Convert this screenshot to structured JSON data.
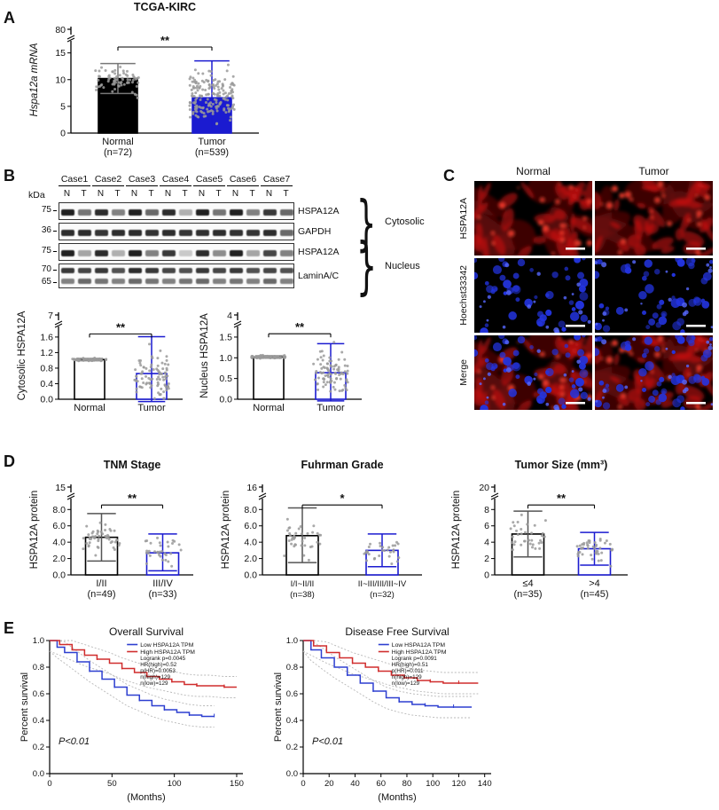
{
  "figure": {
    "background": "#ffffff"
  },
  "panelA": {
    "label": "A"
  },
  "panelB": {
    "label": "B",
    "kda_header": "kDa",
    "cases": [
      "Case1",
      "Case2",
      "Case3",
      "Case4",
      "Case5",
      "Case6",
      "Case7"
    ],
    "lanes": [
      "N",
      "T",
      "N",
      "T",
      "N",
      "T",
      "N",
      "T",
      "N",
      "T",
      "N",
      "T",
      "N",
      "T"
    ],
    "strips": [
      {
        "kda": [
          "75"
        ],
        "name": "HSPA12A",
        "rows": [
          [
            0.9,
            0.55,
            0.85,
            0.5,
            0.9,
            0.6,
            0.85,
            0.3,
            0.9,
            0.55,
            0.9,
            0.5,
            0.8,
            0.6
          ]
        ]
      },
      {
        "kda": [
          "36"
        ],
        "name": "GAPDH",
        "rows": [
          [
            0.85,
            0.85,
            0.82,
            0.85,
            0.85,
            0.83,
            0.85,
            0.82,
            0.84,
            0.85,
            0.83,
            0.82,
            0.85,
            0.6
          ]
        ]
      },
      {
        "kda": [
          "75"
        ],
        "name": "HSPA12A",
        "rows": [
          [
            0.9,
            0.35,
            0.85,
            0.3,
            0.9,
            0.5,
            0.8,
            0.2,
            0.85,
            0.45,
            0.9,
            0.35,
            0.75,
            0.5
          ]
        ]
      },
      {
        "kda": [
          "70",
          "65"
        ],
        "name": "LaminA/C",
        "rows": [
          [
            0.8,
            0.75,
            0.8,
            0.7,
            0.85,
            0.8,
            0.75,
            0.7,
            0.8,
            0.75,
            0.8,
            0.7,
            0.75,
            0.7
          ],
          [
            0.5,
            0.6,
            0.55,
            0.5,
            0.6,
            0.55,
            0.5,
            0.55,
            0.6,
            0.5,
            0.55,
            0.5,
            0.6,
            0.5
          ]
        ]
      }
    ],
    "groups": [
      {
        "label": "Cytosolic"
      },
      {
        "label": "Nucleus"
      }
    ]
  },
  "panelC": {
    "label": "C",
    "col_headers": [
      "Normal",
      "Tumor"
    ],
    "row_labels": [
      "HSPA12A",
      "Hoechst33342",
      "Merge"
    ],
    "cells": [
      {
        "row": "HSPA12A",
        "col": "Normal",
        "red": 1,
        "blue": 0,
        "scalebar": true
      },
      {
        "row": "HSPA12A",
        "col": "Tumor",
        "red": 2,
        "blue": 0,
        "scalebar": true
      },
      {
        "row": "Hoechst33342",
        "col": "Normal",
        "red": 0,
        "blue": 3,
        "scalebar": true
      },
      {
        "row": "Hoechst33342",
        "col": "Tumor",
        "red": 0,
        "blue": 4,
        "scalebar": true
      },
      {
        "row": "Merge",
        "col": "Normal",
        "red": 1,
        "blue": 3,
        "scalebar": true
      },
      {
        "row": "Merge",
        "col": "Tumor",
        "red": 2,
        "blue": 4,
        "scalebar": true
      }
    ]
  },
  "panelD": {
    "label": "D"
  },
  "panelE": {
    "label": "E"
  },
  "chart_data": [
    {
      "type": "barscatter",
      "title": "TCGA-KIRC",
      "title_bold": true,
      "ylabel": "Hspa12a mRNA",
      "ylabel_italic": true,
      "sig": "**",
      "sig_y": 16.1,
      "categories": [
        "Normal",
        "Tumor"
      ],
      "n_labels": [
        "(n=72)",
        "(n=539)"
      ],
      "values": [
        10.2,
        6.6
      ],
      "err_up": [
        2.8,
        6.9
      ],
      "err_dn": [
        2.8,
        6.3
      ],
      "bar_fill": [
        "#000000",
        "#1b1bd0"
      ],
      "bar_stroke": [
        "#000000",
        "#1b1bd0"
      ],
      "err_color": [
        "#777777",
        "#1b1bd0"
      ],
      "yticks": [
        "0",
        "5",
        "10",
        "15"
      ],
      "ymax_lower": 16.6,
      "ytop_label": "80",
      "dots": [
        {
          "n": 70,
          "center": 10,
          "spread": 3.2,
          "min": 4.2,
          "max": 15.7
        },
        {
          "n": 180,
          "center": 7,
          "spread": 5.5,
          "min": 0.3,
          "max": 15.9
        }
      ],
      "dot_color": "#9a9a9a",
      "seed": 11,
      "ml": 50,
      "mt": 30,
      "mb": 38,
      "bw": 44
    },
    {
      "type": "barscatter",
      "ylabel": "Cytosolic HSPA12A",
      "sig": "**",
      "sig_y": 1.68,
      "categories": [
        "Normal",
        "Tumor"
      ],
      "values": [
        1.02,
        0.66
      ],
      "err_up": [
        0.03,
        0.95
      ],
      "err_dn": [
        0.03,
        0.72
      ],
      "bar_fill": [
        "#ffffff",
        "#ffffff"
      ],
      "bar_stroke": [
        "#000000",
        "#1b1bd0"
      ],
      "err_color": [
        "#888888",
        "#1b1bd0"
      ],
      "yticks": [
        "0.0",
        "0.4",
        "0.8",
        "1.2",
        "1.6"
      ],
      "ymax_lower": 1.78,
      "ytop_label": "7",
      "dots": [
        {
          "n": 60,
          "center": 1.02,
          "spread": 0.04,
          "min": 0.96,
          "max": 1.08
        },
        {
          "n": 90,
          "center": 0.6,
          "spread": 0.7,
          "min": 0.02,
          "max": 1.7
        }
      ],
      "dot_color": "#9a9a9a",
      "seed": 23,
      "ml": 50,
      "mt": 18,
      "mb": 26,
      "bw": 34,
      "cat_fs": 11
    },
    {
      "type": "barscatter",
      "ylabel": "Nucleus HSPA12A",
      "sig": "**",
      "sig_y": 1.58,
      "categories": [
        "Normal",
        "Tumor"
      ],
      "values": [
        1.02,
        0.64
      ],
      "err_up": [
        0.03,
        0.7
      ],
      "err_dn": [
        0.03,
        0.68
      ],
      "bar_fill": [
        "#ffffff",
        "#ffffff"
      ],
      "bar_stroke": [
        "#000000",
        "#1b1bd0"
      ],
      "err_color": [
        "#888888",
        "#1b1bd0"
      ],
      "yticks": [
        "0.0",
        "0.5",
        "1.0",
        "1.5"
      ],
      "ymax_lower": 1.67,
      "ytop_label": "4",
      "dots": [
        {
          "n": 60,
          "center": 1.02,
          "spread": 0.04,
          "min": 0.96,
          "max": 1.08
        },
        {
          "n": 90,
          "center": 0.62,
          "spread": 0.65,
          "min": 0.02,
          "max": 1.6
        }
      ],
      "dot_color": "#9a9a9a",
      "seed": 31,
      "ml": 46,
      "mt": 18,
      "mb": 26,
      "bw": 34,
      "cat_fs": 11
    },
    {
      "type": "barscatter",
      "title": "TNM Stage",
      "title_bold": true,
      "ylabel": "HSPA12A protein",
      "sig": "**",
      "sig_y": 8.55,
      "categories": [
        "I/II",
        "III/IV"
      ],
      "n_labels": [
        "(n=49)",
        "(n=33)"
      ],
      "values": [
        4.6,
        2.7
      ],
      "err_up": [
        2.9,
        2.3
      ],
      "err_dn": [
        2.9,
        2.2
      ],
      "bar_fill": [
        "#ffffff",
        "#ffffff"
      ],
      "bar_stroke": [
        "#000000",
        "#1b1bd0"
      ],
      "err_color": [
        "#555555",
        "#1b1bd0"
      ],
      "yticks": [
        "0.0",
        "2.0",
        "4.0",
        "6.0",
        "8.0"
      ],
      "ymax_lower": 8.9,
      "ytop_label": "15",
      "dots": [
        {
          "n": 49,
          "center": 4.5,
          "spread": 2.4,
          "min": 0.4,
          "max": 8.6
        },
        {
          "n": 33,
          "center": 2.8,
          "spread": 2.0,
          "min": 0.3,
          "max": 8.2
        }
      ],
      "dot_color": "#9a9a9a",
      "seed": 41,
      "ml": 50,
      "mt": 30,
      "mb": 40,
      "bw": 36
    },
    {
      "type": "barscatter",
      "title": "Fuhrman Grade",
      "title_bold": true,
      "ylabel": "HSPA12A protein",
      "sig": "*",
      "sig_y": 8.55,
      "categories": [
        "I/I~II/II",
        "II~III/III/III~IV"
      ],
      "n_labels": [
        "(n=38)",
        "(n=32)"
      ],
      "values": [
        4.8,
        3.0
      ],
      "err_up": [
        3.4,
        2.0
      ],
      "err_dn": [
        3.3,
        2.0
      ],
      "bar_fill": [
        "#ffffff",
        "#ffffff"
      ],
      "bar_stroke": [
        "#000000",
        "#1b1bd0"
      ],
      "err_color": [
        "#555555",
        "#1b1bd0"
      ],
      "yticks": [
        "0.0",
        "2.0",
        "4.0",
        "6.0",
        "8.0"
      ],
      "ymax_lower": 8.9,
      "ytop_label": "16",
      "dots": [
        {
          "n": 38,
          "center": 4.6,
          "spread": 2.6,
          "min": 0.5,
          "max": 8.6
        },
        {
          "n": 32,
          "center": 3.0,
          "spread": 1.8,
          "min": 0.4,
          "max": 8.3
        }
      ],
      "dot_color": "#9a9a9a",
      "seed": 47,
      "ml": 50,
      "mt": 30,
      "mb": 40,
      "bw": 36,
      "cat_fs": 9.5
    },
    {
      "type": "barscatter",
      "title": "Tumor Size (mm³)",
      "title_bold": true,
      "ylabel": "HSPA12A protein",
      "sig": "**",
      "sig_y": 8.55,
      "categories": [
        "≤4",
        ">4"
      ],
      "n_labels": [
        "(n=35)",
        "(n=45)"
      ],
      "values": [
        5.0,
        3.2
      ],
      "err_up": [
        2.8,
        2.0
      ],
      "err_dn": [
        2.8,
        2.0
      ],
      "bar_fill": [
        "#ffffff",
        "#ffffff"
      ],
      "bar_stroke": [
        "#000000",
        "#1b1bd0"
      ],
      "err_color": [
        "#555555",
        "#1b1bd0"
      ],
      "yticks": [
        "0",
        "2",
        "4",
        "6",
        "8"
      ],
      "ymax_lower": 8.9,
      "ytop_label": "20",
      "dots": [
        {
          "n": 35,
          "center": 4.8,
          "spread": 2.3,
          "min": 0.5,
          "max": 8.5
        },
        {
          "n": 45,
          "center": 3.2,
          "spread": 1.9,
          "min": 0.3,
          "max": 8.2
        }
      ],
      "dot_color": "#9a9a9a",
      "seed": 53,
      "ml": 52,
      "mt": 30,
      "mb": 40,
      "bw": 36
    },
    {
      "type": "km",
      "title": "Overall Survival",
      "ylabel": "Percent survival",
      "xlabel": "(Months)",
      "xmax": 155,
      "xticks": [
        0,
        50,
        100,
        150
      ],
      "yticks": [
        0,
        0.2,
        0.4,
        0.6,
        0.8,
        1.0
      ],
      "pvalue": "P<0.01",
      "legend": [
        {
          "label": "Low HSPA12A TPM",
          "color": "#2d3fd0"
        },
        {
          "label": "High HSPA12A TPM",
          "color": "#d02d2d"
        }
      ],
      "stats": [
        "Logrank p=0.0045",
        "HR(high)=0.52",
        "p(HR)=0.0053",
        "n(high)=129",
        "n(low)=129"
      ],
      "ci": 0.08,
      "series": [
        {
          "name": "Low HSPA12A TPM",
          "color": "#2d3fd0",
          "points": [
            [
              0,
              1
            ],
            [
              6,
              0.95
            ],
            [
              12,
              0.91
            ],
            [
              22,
              0.84
            ],
            [
              32,
              0.77
            ],
            [
              42,
              0.71
            ],
            [
              52,
              0.65
            ],
            [
              62,
              0.59
            ],
            [
              72,
              0.55
            ],
            [
              82,
              0.51
            ],
            [
              92,
              0.48
            ],
            [
              102,
              0.46
            ],
            [
              112,
              0.44
            ],
            [
              122,
              0.43
            ],
            [
              132,
              0.43
            ]
          ]
        },
        {
          "name": "High HSPA12A TPM",
          "color": "#d02d2d",
          "points": [
            [
              0,
              1
            ],
            [
              8,
              0.97
            ],
            [
              18,
              0.93
            ],
            [
              28,
              0.89
            ],
            [
              38,
              0.86
            ],
            [
              48,
              0.83
            ],
            [
              58,
              0.79
            ],
            [
              68,
              0.76
            ],
            [
              78,
              0.73
            ],
            [
              88,
              0.71
            ],
            [
              98,
              0.69
            ],
            [
              108,
              0.67
            ],
            [
              118,
              0.66
            ],
            [
              128,
              0.66
            ],
            [
              140,
              0.65
            ],
            [
              150,
              0.65
            ]
          ]
        }
      ]
    },
    {
      "type": "km",
      "title": "Disease Free Survival",
      "ylabel": "Percent survival",
      "xlabel": "(Months)",
      "xmax": 145,
      "xticks": [
        0,
        20,
        40,
        60,
        80,
        100,
        120,
        140
      ],
      "yticks": [
        0,
        0.2,
        0.4,
        0.6,
        0.8,
        1.0
      ],
      "pvalue": "P<0.01",
      "legend": [
        {
          "label": "Low HSPA12A TPM",
          "color": "#2d3fd0"
        },
        {
          "label": "High HSPA12A TPM",
          "color": "#d02d2d"
        }
      ],
      "stats": [
        "Logrank p=0.0091",
        "HR(high)=0.51",
        "p(HR)=0.011",
        "n(high)=129",
        "n(low)=129"
      ],
      "ci": 0.08,
      "series": [
        {
          "name": "Low HSPA12A TPM",
          "color": "#2d3fd0",
          "points": [
            [
              0,
              1
            ],
            [
              6,
              0.93
            ],
            [
              14,
              0.87
            ],
            [
              24,
              0.8
            ],
            [
              34,
              0.74
            ],
            [
              44,
              0.68
            ],
            [
              54,
              0.62
            ],
            [
              64,
              0.57
            ],
            [
              74,
              0.54
            ],
            [
              84,
              0.52
            ],
            [
              94,
              0.51
            ],
            [
              104,
              0.5
            ],
            [
              116,
              0.5
            ],
            [
              130,
              0.5
            ]
          ]
        },
        {
          "name": "High HSPA12A TPM",
          "color": "#d02d2d",
          "points": [
            [
              0,
              1
            ],
            [
              8,
              0.96
            ],
            [
              18,
              0.91
            ],
            [
              28,
              0.87
            ],
            [
              38,
              0.83
            ],
            [
              48,
              0.8
            ],
            [
              58,
              0.77
            ],
            [
              68,
              0.74
            ],
            [
              78,
              0.72
            ],
            [
              88,
              0.7
            ],
            [
              98,
              0.69
            ],
            [
              108,
              0.68
            ],
            [
              120,
              0.68
            ],
            [
              135,
              0.68
            ]
          ]
        }
      ]
    }
  ]
}
